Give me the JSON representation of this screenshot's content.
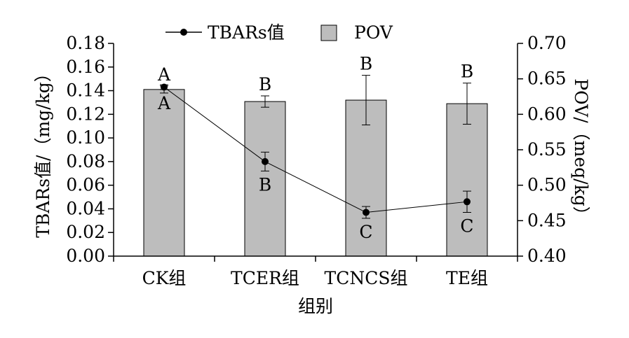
{
  "chart_data": {
    "type": "bar",
    "xlabel": "组别",
    "categories": [
      "CK组",
      "TCER组",
      "TCNCS组",
      "TE组"
    ],
    "left_axis": {
      "label": "TBARs值/（mg/kg）",
      "ylim": [
        0,
        0.18
      ],
      "ticks": [
        "0.00",
        "0.02",
        "0.04",
        "0.06",
        "0.08",
        "0.10",
        "0.12",
        "0.14",
        "0.16",
        "0.18"
      ]
    },
    "right_axis": {
      "label": "POV/（meq/kg）",
      "ylim": [
        0.4,
        0.7
      ],
      "ticks": [
        "0.40",
        "0.45",
        "0.50",
        "0.55",
        "0.60",
        "0.65",
        "0.70"
      ]
    },
    "series": [
      {
        "name": "POV",
        "type": "bar",
        "axis": "right",
        "color": "#bdbdbd",
        "values": [
          0.635,
          0.618,
          0.62,
          0.615
        ],
        "errors": [
          0.005,
          0.008,
          0.035,
          0.029
        ],
        "labels": [
          "A",
          "B",
          "B",
          "B"
        ]
      },
      {
        "name": "TBARs值",
        "type": "line",
        "axis": "left",
        "color": "#000000",
        "values": [
          0.143,
          0.08,
          0.037,
          0.046
        ],
        "errors": [
          0.002,
          0.008,
          0.005,
          0.009
        ],
        "labels": [
          "A",
          "B",
          "C",
          "C"
        ]
      }
    ],
    "legend": "top-center",
    "grid": false
  }
}
